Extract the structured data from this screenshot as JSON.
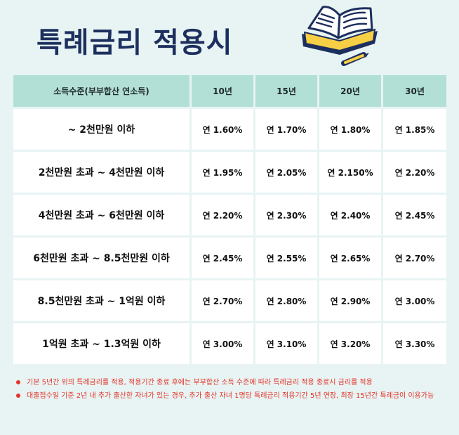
{
  "title": "특례금리 적용시",
  "table": {
    "headers": [
      "소득수준(부부합산 연소득)",
      "10년",
      "15년",
      "20년",
      "30년"
    ],
    "rows": [
      {
        "income": "~ 2천만원 이하",
        "rates": [
          "연 1.60%",
          "연 1.70%",
          "연 1.80%",
          "연 1.85%"
        ]
      },
      {
        "income": "2천만원 초과 ~ 4천만원 이하",
        "rates": [
          "연 1.95%",
          "연 2.05%",
          "연 2.150%",
          "연 2.20%"
        ]
      },
      {
        "income": "4천만원 초과 ~ 6천만원 이하",
        "rates": [
          "연 2.20%",
          "연 2.30%",
          "연 2.40%",
          "연 2.45%"
        ]
      },
      {
        "income": "6천만원 초과 ~ 8.5천만원 이하",
        "rates": [
          "연 2.45%",
          "연 2.55%",
          "연 2.65%",
          "연 2.70%"
        ]
      },
      {
        "income": "8.5천만원 초과 ~ 1억원 이하",
        "rates": [
          "연 2.70%",
          "연 2.80%",
          "연 2.90%",
          "연 3.00%"
        ]
      },
      {
        "income": "1억원 초과 ~ 1.3억원 이하",
        "rates": [
          "연 3.00%",
          "연 3.10%",
          "연 3.20%",
          "연 3.30%"
        ]
      }
    ]
  },
  "notes": [
    "기본 5년간 위의 특례금리를 적용, 적용기간 종료 후에는 부부합산 소득 수준에 따라 특례금리 적용 종료시 금리를 적용",
    "대출접수일 기준 2년 내 추가 출산한 자녀가 있는 경우, 추가 출산 자녀 1명당 특례금리 적용기간 5년 연장, 최장 15년간 특례금이 이용가능"
  ],
  "icons": {
    "illustration": "open-book-pencil-icon"
  },
  "colors": {
    "background": "#e7f4f3",
    "title": "#1d2f5e",
    "header_fill": "#b2dfd6",
    "notes": "#e5332a"
  }
}
